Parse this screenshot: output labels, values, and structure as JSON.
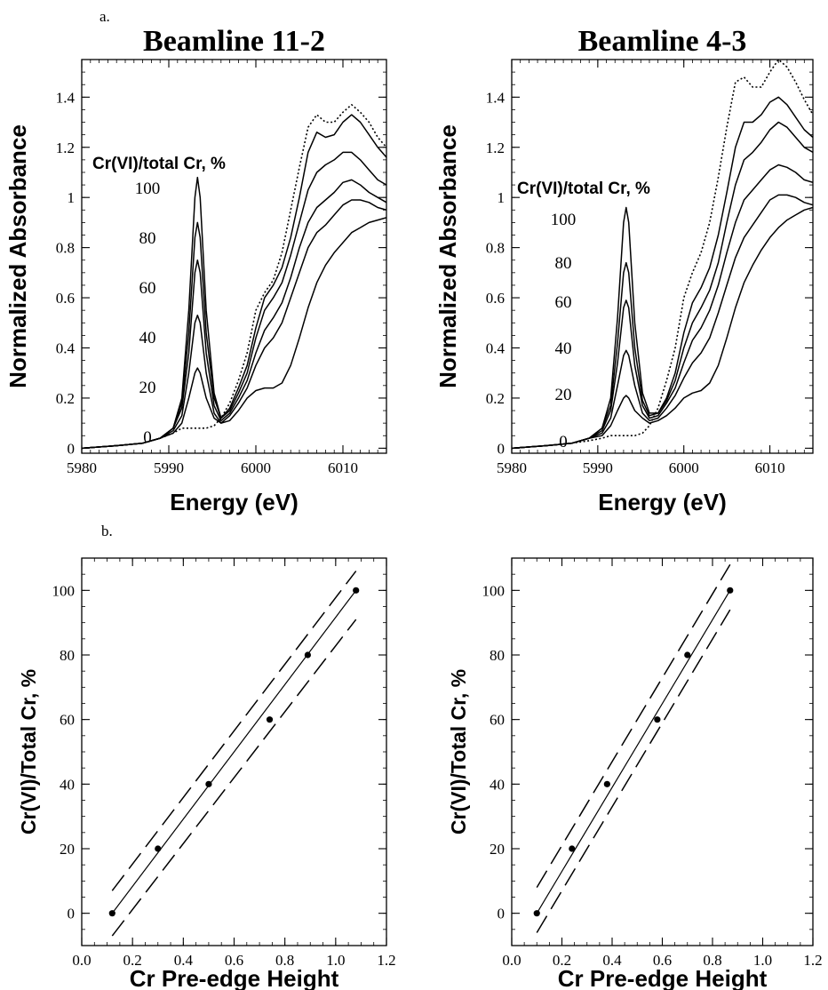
{
  "figure": {
    "panel_a_label": "a.",
    "panel_b_label": "b."
  },
  "chart_data": [
    {
      "id": "a1",
      "type": "line",
      "title": "Beamline 11-2",
      "xlabel": "Energy (eV)",
      "ylabel": "Normalized Absorbance",
      "xlim": [
        5980,
        6015
      ],
      "ylim": [
        -0.02,
        1.55
      ],
      "xticks": [
        5980,
        5990,
        6000,
        6010
      ],
      "yticks": [
        0,
        0.2,
        0.4,
        0.6,
        0.8,
        1,
        1.2,
        1.4
      ],
      "ytick_labels": [
        "0",
        "0.2",
        "0.4",
        "0.6",
        "0.8",
        "1",
        "1.2",
        "1.4"
      ],
      "annotation_title": "Cr(VI)/total Cr, %",
      "annotations": [
        "100",
        "80",
        "60",
        "40",
        "20",
        "0"
      ],
      "series": [
        {
          "style": "solid",
          "x": [
            5980,
            5984,
            5987,
            5989,
            5990.5,
            5991.5,
            5992.3,
            5993,
            5993.3,
            5993.6,
            5994.3,
            5995.2,
            5996,
            5997,
            5998,
            5999,
            6000,
            6001,
            6002,
            6003,
            6004,
            6005,
            6006,
            6007,
            6008,
            6009,
            6010,
            6011,
            6012,
            6013,
            6014,
            6015
          ],
          "y": [
            0,
            0.01,
            0.02,
            0.04,
            0.08,
            0.2,
            0.55,
            1.0,
            1.08,
            1.0,
            0.55,
            0.22,
            0.12,
            0.16,
            0.24,
            0.33,
            0.48,
            0.6,
            0.65,
            0.72,
            0.84,
            1.0,
            1.18,
            1.26,
            1.24,
            1.25,
            1.3,
            1.33,
            1.3,
            1.25,
            1.2,
            1.16
          ]
        },
        {
          "style": "solid",
          "x": [
            5980,
            5984,
            5987,
            5989,
            5990.5,
            5991.5,
            5992.3,
            5993,
            5993.3,
            5993.6,
            5994.3,
            5995.2,
            5996,
            5997,
            5998,
            5999,
            6000,
            6001,
            6002,
            6003,
            6004,
            6005,
            6006,
            6007,
            6008,
            6009,
            6010,
            6011,
            6012,
            6013,
            6014,
            6015
          ],
          "y": [
            0,
            0.01,
            0.02,
            0.04,
            0.08,
            0.18,
            0.46,
            0.84,
            0.9,
            0.84,
            0.46,
            0.2,
            0.12,
            0.15,
            0.22,
            0.3,
            0.44,
            0.55,
            0.6,
            0.66,
            0.77,
            0.9,
            1.03,
            1.1,
            1.13,
            1.15,
            1.18,
            1.18,
            1.15,
            1.11,
            1.07,
            1.05
          ]
        },
        {
          "style": "solid",
          "x": [
            5980,
            5984,
            5987,
            5989,
            5990.5,
            5991.5,
            5992.3,
            5993,
            5993.3,
            5993.6,
            5994.3,
            5995.2,
            5996,
            5997,
            5998,
            5999,
            6000,
            6001,
            6002,
            6003,
            6004,
            6005,
            6006,
            6007,
            6008,
            6009,
            6010,
            6011,
            6012,
            6013,
            6014,
            6015
          ],
          "y": [
            0,
            0.01,
            0.02,
            0.04,
            0.08,
            0.16,
            0.38,
            0.7,
            0.75,
            0.7,
            0.38,
            0.17,
            0.11,
            0.14,
            0.2,
            0.27,
            0.38,
            0.47,
            0.52,
            0.58,
            0.68,
            0.8,
            0.9,
            0.96,
            0.99,
            1.02,
            1.06,
            1.07,
            1.05,
            1.02,
            1.0,
            0.98
          ]
        },
        {
          "style": "solid",
          "x": [
            5980,
            5984,
            5987,
            5989,
            5990.5,
            5991.5,
            5992.3,
            5993,
            5993.3,
            5993.6,
            5994.3,
            5995.2,
            5996,
            5997,
            5998,
            5999,
            6000,
            6001,
            6002,
            6003,
            6004,
            6005,
            6006,
            6007,
            6008,
            6009,
            6010,
            6011,
            6012,
            6013,
            6014,
            6015
          ],
          "y": [
            0,
            0.01,
            0.02,
            0.04,
            0.07,
            0.13,
            0.3,
            0.5,
            0.53,
            0.5,
            0.3,
            0.14,
            0.1,
            0.13,
            0.18,
            0.24,
            0.33,
            0.4,
            0.44,
            0.5,
            0.6,
            0.7,
            0.8,
            0.86,
            0.89,
            0.93,
            0.97,
            0.99,
            0.99,
            0.98,
            0.96,
            0.95
          ]
        },
        {
          "style": "solid",
          "x": [
            5980,
            5984,
            5987,
            5989,
            5990.5,
            5991.5,
            5992.3,
            5993,
            5993.3,
            5993.6,
            5994.3,
            5995.2,
            5996,
            5997,
            5998,
            5999,
            6000,
            6001,
            6002,
            6003,
            6004,
            6005,
            6006,
            6007,
            6008,
            6009,
            6010,
            6011,
            6012,
            6013,
            6014,
            6015
          ],
          "y": [
            0,
            0.01,
            0.02,
            0.04,
            0.06,
            0.1,
            0.2,
            0.3,
            0.32,
            0.3,
            0.2,
            0.12,
            0.1,
            0.11,
            0.15,
            0.2,
            0.23,
            0.24,
            0.24,
            0.26,
            0.33,
            0.44,
            0.56,
            0.66,
            0.73,
            0.78,
            0.82,
            0.86,
            0.88,
            0.9,
            0.91,
            0.92
          ]
        },
        {
          "style": "dotted",
          "x": [
            5980,
            5984,
            5987,
            5989,
            5990.5,
            5991.5,
            5992.3,
            5993,
            5993.3,
            5993.6,
            5994.3,
            5995.2,
            5996,
            5997,
            5998,
            5999,
            6000,
            6001,
            6002,
            6003,
            6004,
            6005,
            6006,
            6007,
            6008,
            6009,
            6010,
            6011,
            6012,
            6013,
            6014,
            6015
          ],
          "y": [
            0,
            0.01,
            0.02,
            0.04,
            0.06,
            0.08,
            0.08,
            0.08,
            0.08,
            0.08,
            0.08,
            0.09,
            0.12,
            0.18,
            0.27,
            0.38,
            0.55,
            0.62,
            0.67,
            0.78,
            0.95,
            1.12,
            1.28,
            1.33,
            1.3,
            1.3,
            1.34,
            1.37,
            1.34,
            1.3,
            1.24,
            1.2
          ]
        }
      ]
    },
    {
      "id": "a2",
      "type": "line",
      "title": "Beamline 4-3",
      "xlabel": "Energy (eV)",
      "ylabel": "Normalized Absorbance",
      "xlim": [
        5980,
        6015
      ],
      "ylim": [
        -0.02,
        1.55
      ],
      "xticks": [
        5980,
        5990,
        6000,
        6010
      ],
      "yticks": [
        0,
        0.2,
        0.4,
        0.6,
        0.8,
        1,
        1.2,
        1.4
      ],
      "ytick_labels": [
        "0",
        "0.2",
        "0.4",
        "0.6",
        "0.8",
        "1",
        "1.2",
        "1.4"
      ],
      "annotation_title": "Cr(VI)/total Cr, %",
      "annotations": [
        "100",
        "80",
        "60",
        "40",
        "20",
        "0"
      ],
      "series": [
        {
          "style": "solid",
          "x": [
            5980,
            5984,
            5987,
            5989,
            5990.5,
            5991.5,
            5992.3,
            5993,
            5993.3,
            5993.6,
            5994.3,
            5995.2,
            5996,
            5997,
            5998,
            5999,
            6000,
            6001,
            6002,
            6003,
            6004,
            6005,
            6006,
            6007,
            6008,
            6009,
            6010,
            6011,
            6012,
            6013,
            6014,
            6015
          ],
          "y": [
            0,
            0.01,
            0.02,
            0.04,
            0.08,
            0.2,
            0.52,
            0.9,
            0.96,
            0.9,
            0.5,
            0.22,
            0.14,
            0.14,
            0.2,
            0.3,
            0.46,
            0.58,
            0.64,
            0.72,
            0.85,
            1.02,
            1.2,
            1.3,
            1.3,
            1.33,
            1.38,
            1.4,
            1.37,
            1.32,
            1.27,
            1.24
          ]
        },
        {
          "style": "solid",
          "x": [
            5980,
            5984,
            5987,
            5989,
            5990.5,
            5991.5,
            5992.3,
            5993,
            5993.3,
            5993.6,
            5994.3,
            5995.2,
            5996,
            5997,
            5998,
            5999,
            6000,
            6001,
            6002,
            6003,
            6004,
            6005,
            6006,
            6007,
            6008,
            6009,
            6010,
            6011,
            6012,
            6013,
            6014,
            6015
          ],
          "y": [
            0,
            0.01,
            0.02,
            0.04,
            0.08,
            0.17,
            0.42,
            0.7,
            0.74,
            0.7,
            0.4,
            0.19,
            0.13,
            0.14,
            0.19,
            0.27,
            0.4,
            0.5,
            0.56,
            0.63,
            0.74,
            0.9,
            1.05,
            1.15,
            1.18,
            1.22,
            1.27,
            1.3,
            1.28,
            1.24,
            1.2,
            1.18
          ]
        },
        {
          "style": "solid",
          "x": [
            5980,
            5984,
            5987,
            5989,
            5990.5,
            5991.5,
            5992.3,
            5993,
            5993.3,
            5993.6,
            5994.3,
            5995.2,
            5996,
            5997,
            5998,
            5999,
            6000,
            6001,
            6002,
            6003,
            6004,
            6005,
            6006,
            6007,
            6008,
            6009,
            6010,
            6011,
            6012,
            6013,
            6014,
            6015
          ],
          "y": [
            0,
            0.01,
            0.02,
            0.04,
            0.07,
            0.15,
            0.34,
            0.56,
            0.59,
            0.56,
            0.33,
            0.17,
            0.12,
            0.13,
            0.18,
            0.24,
            0.34,
            0.43,
            0.48,
            0.55,
            0.65,
            0.78,
            0.9,
            0.99,
            1.03,
            1.07,
            1.11,
            1.13,
            1.12,
            1.1,
            1.07,
            1.06
          ]
        },
        {
          "style": "solid",
          "x": [
            5980,
            5984,
            5987,
            5989,
            5990.5,
            5991.5,
            5992.3,
            5993,
            5993.3,
            5993.6,
            5994.3,
            5995.2,
            5996,
            5997,
            5998,
            5999,
            6000,
            6001,
            6002,
            6003,
            6004,
            6005,
            6006,
            6007,
            6008,
            6009,
            6010,
            6011,
            6012,
            6013,
            6014,
            6015
          ],
          "y": [
            0,
            0.01,
            0.02,
            0.04,
            0.06,
            0.12,
            0.25,
            0.37,
            0.39,
            0.37,
            0.25,
            0.14,
            0.11,
            0.12,
            0.16,
            0.21,
            0.28,
            0.34,
            0.38,
            0.44,
            0.54,
            0.65,
            0.76,
            0.84,
            0.89,
            0.94,
            0.99,
            1.01,
            1.01,
            1.0,
            0.98,
            0.97
          ]
        },
        {
          "style": "solid",
          "x": [
            5980,
            5984,
            5987,
            5989,
            5990.5,
            5991.5,
            5992.3,
            5993,
            5993.3,
            5993.6,
            5994.3,
            5995.2,
            5996,
            5997,
            5998,
            5999,
            6000,
            6001,
            6002,
            6003,
            6004,
            6005,
            6006,
            6007,
            6008,
            6009,
            6010,
            6011,
            6012,
            6013,
            6014,
            6015
          ],
          "y": [
            0,
            0.01,
            0.02,
            0.04,
            0.05,
            0.09,
            0.15,
            0.2,
            0.21,
            0.2,
            0.15,
            0.12,
            0.1,
            0.11,
            0.13,
            0.16,
            0.2,
            0.22,
            0.23,
            0.26,
            0.33,
            0.44,
            0.56,
            0.66,
            0.73,
            0.79,
            0.84,
            0.88,
            0.91,
            0.93,
            0.95,
            0.96
          ]
        },
        {
          "style": "dotted",
          "x": [
            5980,
            5984,
            5987,
            5989,
            5990.5,
            5991.5,
            5992.3,
            5993,
            5993.3,
            5993.6,
            5994.3,
            5995.2,
            5996,
            5997,
            5998,
            5999,
            6000,
            6001,
            6002,
            6003,
            6004,
            6005,
            6006,
            6007,
            6008,
            6009,
            6010,
            6011,
            6012,
            6013,
            6014,
            6015
          ],
          "y": [
            0,
            0.01,
            0.02,
            0.03,
            0.04,
            0.05,
            0.05,
            0.05,
            0.05,
            0.05,
            0.05,
            0.06,
            0.09,
            0.16,
            0.27,
            0.4,
            0.6,
            0.7,
            0.78,
            0.9,
            1.08,
            1.28,
            1.46,
            1.48,
            1.44,
            1.44,
            1.5,
            1.55,
            1.52,
            1.46,
            1.39,
            1.33
          ]
        }
      ]
    },
    {
      "id": "b1",
      "type": "scatter",
      "xlabel": "Cr Pre-edge Height",
      "ylabel": "Cr(VI)/Total Cr, %",
      "xlim": [
        0,
        1.2
      ],
      "ylim": [
        -10,
        110
      ],
      "xticks": [
        0,
        0.2,
        0.4,
        0.6,
        0.8,
        1.0,
        1.2
      ],
      "xtick_labels": [
        "0.0",
        "0.2",
        "0.4",
        "0.6",
        "0.8",
        "1.0",
        "1.2"
      ],
      "yticks": [
        0,
        20,
        40,
        60,
        80,
        100
      ],
      "ytick_labels": [
        "0",
        "20",
        "40",
        "60",
        "80",
        "100"
      ],
      "points": {
        "x": [
          0.12,
          0.3,
          0.5,
          0.74,
          0.89,
          1.08
        ],
        "y": [
          0,
          20,
          40,
          60,
          80,
          100
        ]
      },
      "fit_line": {
        "x": [
          0.12,
          1.08
        ],
        "y": [
          0,
          100
        ]
      },
      "confidence_bounds": [
        {
          "x": [
            0.12,
            1.08
          ],
          "y": [
            7,
            106
          ]
        },
        {
          "x": [
            0.12,
            1.08
          ],
          "y": [
            -7,
            91
          ]
        }
      ]
    },
    {
      "id": "b2",
      "type": "scatter",
      "xlabel": "Cr Pre-edge Height",
      "ylabel": "Cr(VI)/Total Cr, %",
      "xlim": [
        0,
        1.2
      ],
      "ylim": [
        -10,
        110
      ],
      "xticks": [
        0,
        0.2,
        0.4,
        0.6,
        0.8,
        1.0,
        1.2
      ],
      "xtick_labels": [
        "0.0",
        "0.2",
        "0.4",
        "0.6",
        "0.8",
        "1.0",
        "1.2"
      ],
      "yticks": [
        0,
        20,
        40,
        60,
        80,
        100
      ],
      "ytick_labels": [
        "0",
        "20",
        "40",
        "60",
        "80",
        "100"
      ],
      "points": {
        "x": [
          0.1,
          0.24,
          0.38,
          0.58,
          0.7,
          0.87
        ],
        "y": [
          0,
          20,
          40,
          60,
          80,
          100
        ]
      },
      "fit_line": {
        "x": [
          0.1,
          0.87
        ],
        "y": [
          0,
          100
        ]
      },
      "confidence_bounds": [
        {
          "x": [
            0.1,
            0.87
          ],
          "y": [
            8,
            108
          ]
        },
        {
          "x": [
            0.1,
            0.87
          ],
          "y": [
            -6,
            94
          ]
        }
      ]
    }
  ]
}
